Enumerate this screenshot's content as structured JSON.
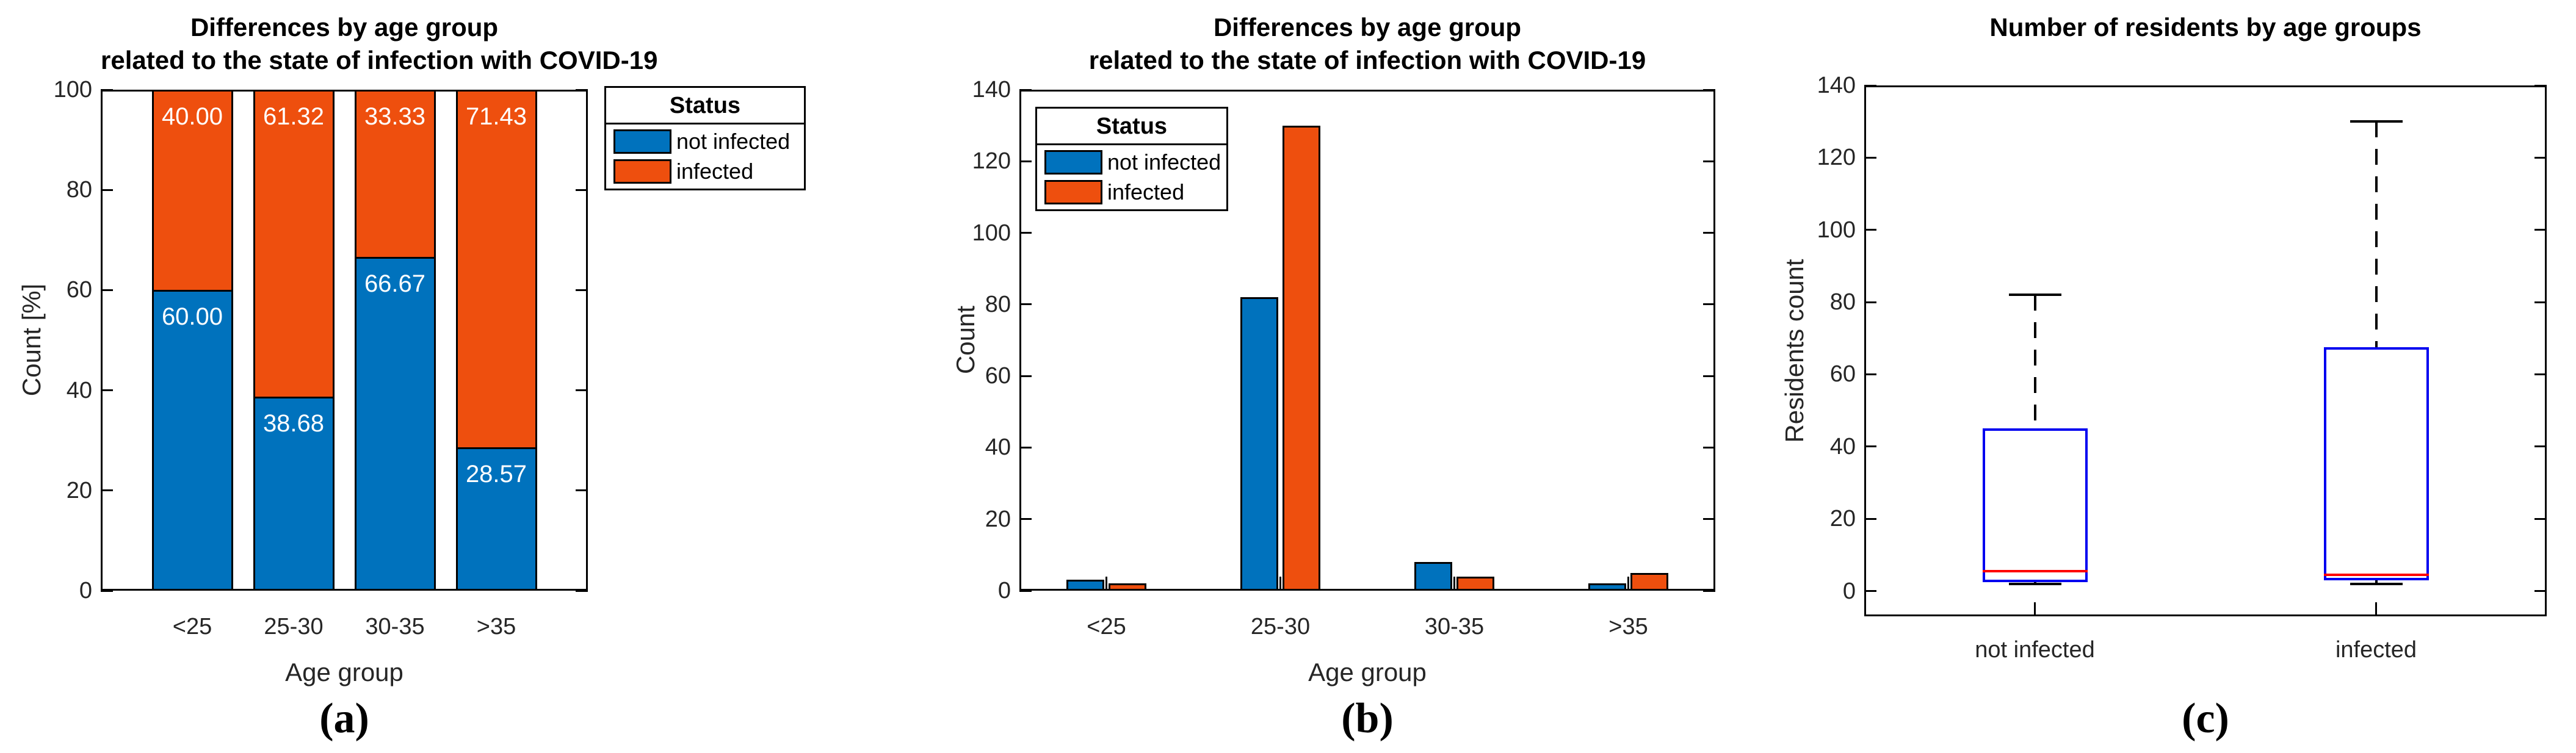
{
  "page": {
    "background": "#FFFFFF"
  },
  "chart_data": [
    {
      "type": "bar",
      "variant": "stacked-percent",
      "panel_label": "(a)",
      "title_lines": [
        "Differences by age group",
        "related to the state of infection with COVID-19"
      ],
      "xlabel": "Age group",
      "ylabel": "Count [%]",
      "categories": [
        "<25",
        "25-30",
        "30-35",
        ">35"
      ],
      "series": [
        {
          "name": "not infected",
          "color": "#0072BD",
          "values": [
            60.0,
            38.68,
            66.67,
            28.57
          ],
          "value_labels": [
            "60.00",
            "38.68",
            "66.67",
            "28.57"
          ]
        },
        {
          "name": "infected",
          "color": "#EE4F0E",
          "values": [
            40.0,
            61.32,
            33.33,
            71.43
          ],
          "value_labels": [
            "40.00",
            "61.32",
            "33.33",
            "71.43"
          ]
        }
      ],
      "ylim": [
        0,
        100
      ],
      "yticks": [
        0,
        20,
        40,
        60,
        80,
        100
      ],
      "legend": {
        "title": "Status",
        "position": "outside-right"
      },
      "grid": false
    },
    {
      "type": "bar",
      "variant": "grouped",
      "panel_label": "(b)",
      "title_lines": [
        "Differences by age group",
        "related to the state of infection with COVID-19"
      ],
      "xlabel": "Age group",
      "ylabel": "Count",
      "categories": [
        "<25",
        "25-30",
        "30-35",
        ">35"
      ],
      "series": [
        {
          "name": "not infected",
          "color": "#0072BD",
          "values": [
            3,
            82,
            8,
            2
          ]
        },
        {
          "name": "infected",
          "color": "#EE4F0E",
          "values": [
            2,
            130,
            4,
            5
          ]
        }
      ],
      "ylim": [
        0,
        140
      ],
      "yticks": [
        0,
        20,
        40,
        60,
        80,
        100,
        120,
        140
      ],
      "legend": {
        "title": "Status",
        "position": "inside-top-left"
      },
      "grid": false
    },
    {
      "type": "boxplot",
      "panel_label": "(c)",
      "title_lines": [
        "Number of residents by age groups"
      ],
      "xlabel": "",
      "ylabel": "Residents count",
      "categories": [
        "not infected",
        "infected"
      ],
      "boxes": [
        {
          "category": "not infected",
          "whisker_low": 2,
          "q1": 2.5,
          "median": 5.5,
          "q3": 45,
          "whisker_high": 82
        },
        {
          "category": "infected",
          "whisker_low": 2,
          "q1": 3,
          "median": 4.5,
          "q3": 67.5,
          "whisker_high": 130
        }
      ],
      "ylim": [
        -7,
        140
      ],
      "yticks": [
        0,
        20,
        40,
        60,
        80,
        100,
        120,
        140
      ],
      "box_color": "#0000F0",
      "median_color": "#FF0000",
      "whisker_color": "#000000",
      "grid": false
    }
  ]
}
